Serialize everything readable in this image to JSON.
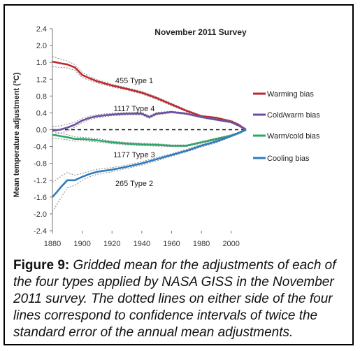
{
  "chart_data": {
    "type": "line",
    "title": "November 2011 Survey",
    "xlabel": "",
    "ylabel": "Mean temperature adjustment (ºC)",
    "xlim": [
      1880,
      2010
    ],
    "ylim": [
      -2.4,
      2.4
    ],
    "x_ticks": [
      1880,
      1900,
      1920,
      1940,
      1960,
      1980,
      2000
    ],
    "y_ticks": [
      2.4,
      2.0,
      1.6,
      1.2,
      0.8,
      0.4,
      0.0,
      -0.4,
      -0.8,
      -1.2,
      -1.6,
      -2.0,
      -2.4
    ],
    "y_tick_labels": [
      "2.4",
      "2.0",
      "1.6",
      "1.2",
      "0.8",
      "0.4",
      "0.0",
      "-0.4",
      "-0.8",
      "-1.2",
      "-1.6",
      "-2.0",
      "-2.4"
    ],
    "grid": false,
    "reference_line": {
      "y": 0.0,
      "style": "dashed"
    },
    "legend_position": "right",
    "series": [
      {
        "name": "Warming bias",
        "annotation": "455 Type 1",
        "color": "#c0272d",
        "x": [
          1880,
          1885,
          1890,
          1895,
          1900,
          1905,
          1910,
          1920,
          1930,
          1940,
          1950,
          1960,
          1970,
          1980,
          1990,
          2000,
          2005,
          2010
        ],
        "values": [
          1.62,
          1.58,
          1.55,
          1.48,
          1.3,
          1.22,
          1.15,
          1.05,
          0.97,
          0.88,
          0.75,
          0.6,
          0.45,
          0.32,
          0.28,
          0.2,
          0.12,
          0.0
        ],
        "ci": [
          0.12,
          0.1,
          0.08,
          0.07,
          0.06,
          0.05,
          0.04,
          0.03,
          0.03,
          0.03,
          0.03,
          0.03,
          0.02,
          0.02,
          0.02,
          0.02,
          0.02,
          0.02
        ]
      },
      {
        "name": "Cold/warm bias",
        "annotation": "1117 Type 4",
        "color": "#6a4ea0",
        "x": [
          1880,
          1885,
          1890,
          1895,
          1900,
          1905,
          1910,
          1920,
          1930,
          1940,
          1945,
          1950,
          1960,
          1970,
          1980,
          1990,
          2000,
          2005,
          2010
        ],
        "values": [
          -0.02,
          0.0,
          0.05,
          0.12,
          0.22,
          0.28,
          0.32,
          0.36,
          0.38,
          0.38,
          0.3,
          0.38,
          0.42,
          0.38,
          0.3,
          0.24,
          0.18,
          0.1,
          0.0
        ],
        "ci": [
          0.1,
          0.09,
          0.08,
          0.06,
          0.05,
          0.04,
          0.04,
          0.03,
          0.03,
          0.03,
          0.03,
          0.03,
          0.02,
          0.02,
          0.02,
          0.02,
          0.02,
          0.02,
          0.02
        ]
      },
      {
        "name": "Warm/cold bias",
        "annotation": "1177 Type 3",
        "color": "#2ea56a",
        "x": [
          1880,
          1885,
          1890,
          1895,
          1900,
          1910,
          1920,
          1930,
          1940,
          1950,
          1960,
          1970,
          1980,
          1990,
          2000,
          2005,
          2010
        ],
        "values": [
          -0.12,
          -0.15,
          -0.18,
          -0.22,
          -0.22,
          -0.25,
          -0.3,
          -0.33,
          -0.35,
          -0.36,
          -0.38,
          -0.38,
          -0.3,
          -0.22,
          -0.14,
          -0.08,
          0.0
        ],
        "ci": [
          0.08,
          0.07,
          0.06,
          0.05,
          0.04,
          0.04,
          0.03,
          0.03,
          0.03,
          0.03,
          0.02,
          0.02,
          0.02,
          0.02,
          0.02,
          0.02,
          0.02
        ]
      },
      {
        "name": "Cooling bias",
        "annotation": "265 Type 2",
        "color": "#2f7bbf",
        "x": [
          1880,
          1883,
          1886,
          1890,
          1895,
          1900,
          1905,
          1910,
          1920,
          1930,
          1940,
          1950,
          1960,
          1970,
          1980,
          1990,
          2000,
          2005,
          2010
        ],
        "values": [
          -1.6,
          -1.48,
          -1.35,
          -1.2,
          -1.2,
          -1.12,
          -1.05,
          -1.0,
          -0.95,
          -0.88,
          -0.8,
          -0.7,
          -0.6,
          -0.5,
          -0.38,
          -0.28,
          -0.15,
          -0.08,
          0.0
        ],
        "ci": [
          0.35,
          0.3,
          0.25,
          0.18,
          0.12,
          0.08,
          0.07,
          0.06,
          0.05,
          0.04,
          0.04,
          0.04,
          0.03,
          0.03,
          0.03,
          0.03,
          0.02,
          0.02,
          0.02
        ]
      }
    ]
  },
  "caption": {
    "lead": "Figure 9:",
    "body": "Gridded mean for the adjustments of each of the four types applied by NASA GISS in the November 2011 survey.  The dotted lines on either side of the four lines correspond to confidence intervals of twice the standard error of the annual mean adjustments."
  }
}
